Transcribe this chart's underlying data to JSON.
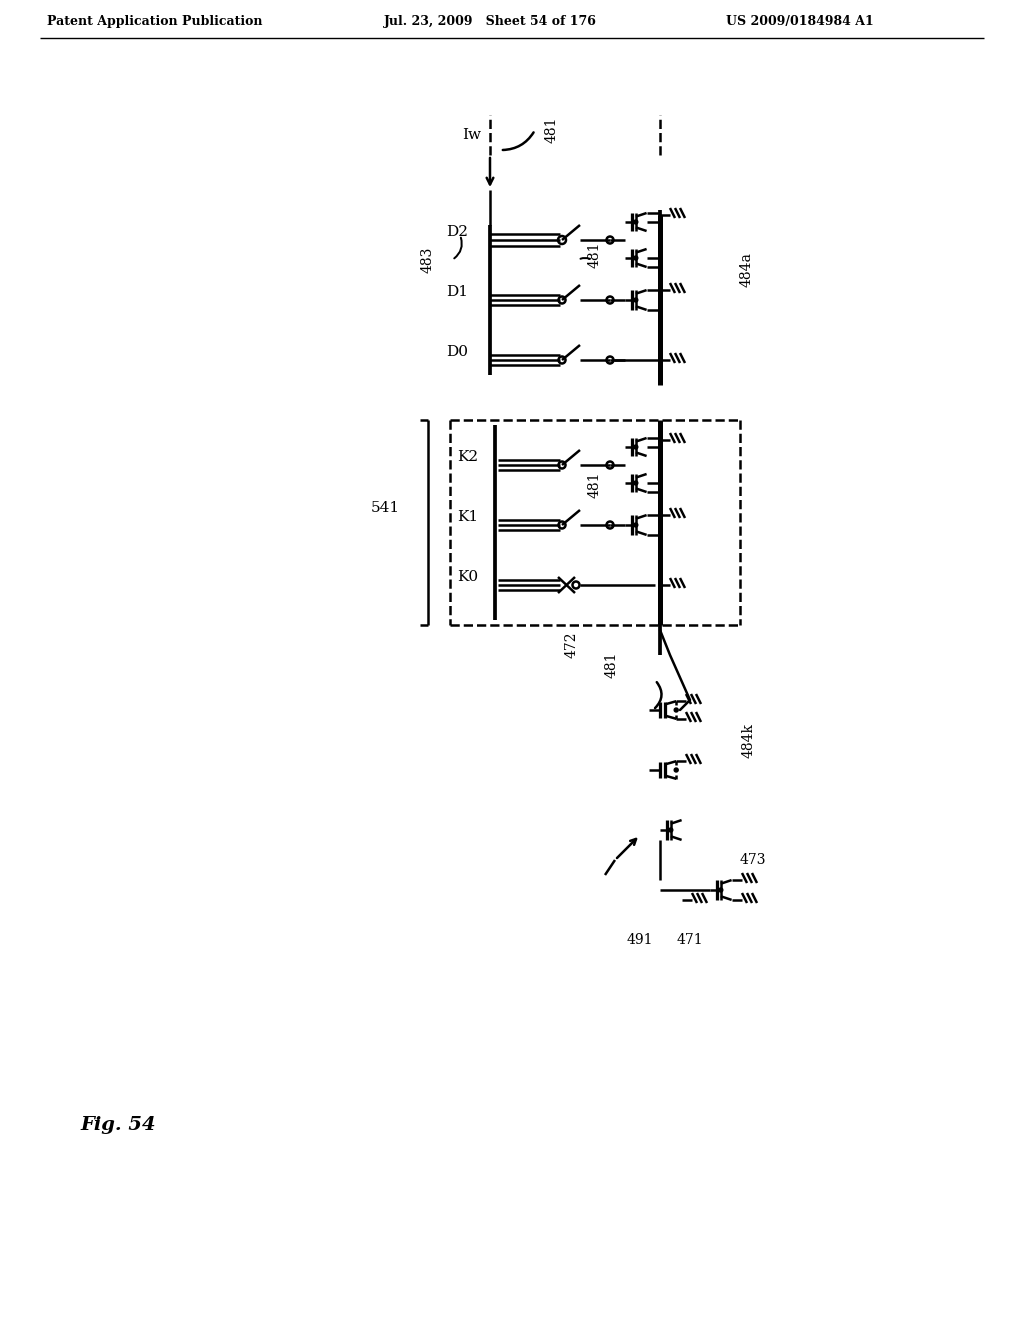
{
  "title_left": "Patent Application Publication",
  "title_mid": "Jul. 23, 2009   Sheet 54 of 176",
  "title_right": "US 2009/0184984 A1",
  "fig_label": "Fig. 54",
  "bg_color": "#ffffff",
  "line_color": "#000000",
  "text_color": "#000000",
  "lw": 1.8
}
